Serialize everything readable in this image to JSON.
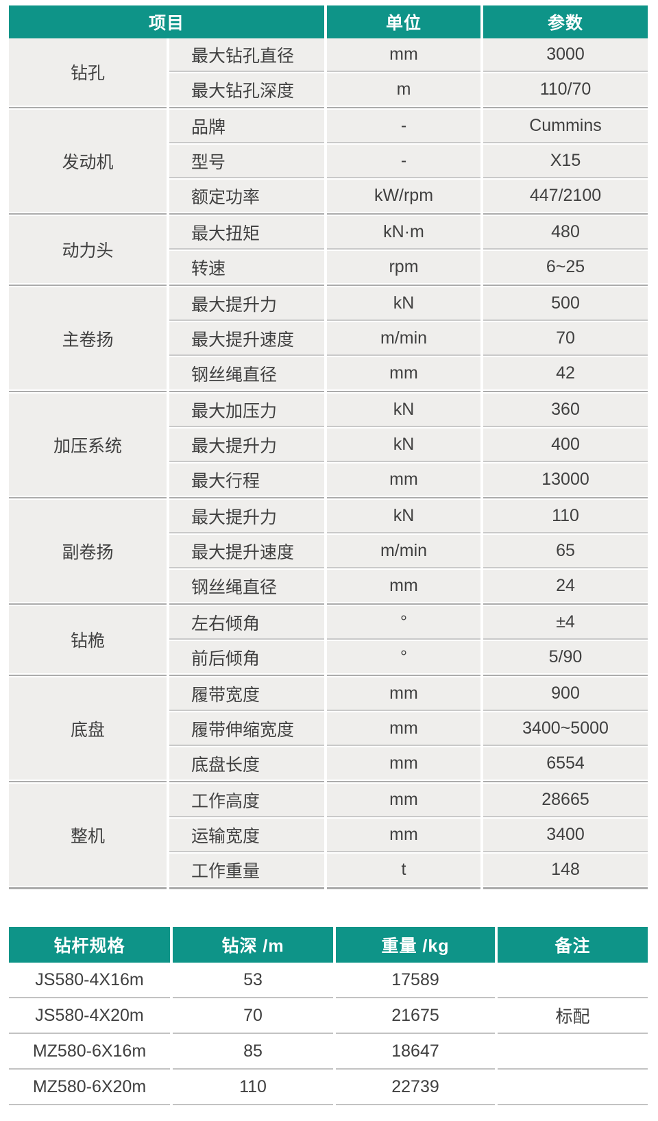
{
  "colors": {
    "accent_teal": "#0E9488",
    "cell_gray": "#EFEEEC",
    "text": "#404040",
    "row_divider": "#C9C9C9",
    "group_divider": "#ABABAB",
    "pipe_row_divider": "#C2C2C2"
  },
  "spec_table": {
    "headers": [
      "项目",
      "单位",
      "参数"
    ],
    "groups": [
      {
        "name": "钻孔",
        "rows": [
          {
            "item": "最大钻孔直径",
            "unit": "mm",
            "value": "3000"
          },
          {
            "item": "最大钻孔深度",
            "unit": "m",
            "value": "110/70"
          }
        ]
      },
      {
        "name": "发动机",
        "rows": [
          {
            "item": "品牌",
            "unit": "-",
            "value": "Cummins"
          },
          {
            "item": "型号",
            "unit": "-",
            "value": "X15"
          },
          {
            "item": "额定功率",
            "unit": "kW/rpm",
            "value": "447/2100"
          }
        ]
      },
      {
        "name": "动力头",
        "rows": [
          {
            "item": "最大扭矩",
            "unit": "kN·m",
            "value": "480"
          },
          {
            "item": "转速",
            "unit": "rpm",
            "value": "6~25"
          }
        ]
      },
      {
        "name": "主卷扬",
        "rows": [
          {
            "item": "最大提升力",
            "unit": "kN",
            "value": "500"
          },
          {
            "item": "最大提升速度",
            "unit": "m/min",
            "value": "70"
          },
          {
            "item": "钢丝绳直径",
            "unit": "mm",
            "value": "42"
          }
        ]
      },
      {
        "name": "加压系统",
        "rows": [
          {
            "item": "最大加压力",
            "unit": "kN",
            "value": "360"
          },
          {
            "item": "最大提升力",
            "unit": "kN",
            "value": "400"
          },
          {
            "item": "最大行程",
            "unit": "mm",
            "value": "13000"
          }
        ]
      },
      {
        "name": "副卷扬",
        "rows": [
          {
            "item": "最大提升力",
            "unit": "kN",
            "value": "110"
          },
          {
            "item": "最大提升速度",
            "unit": "m/min",
            "value": "65"
          },
          {
            "item": "钢丝绳直径",
            "unit": "mm",
            "value": "24"
          }
        ]
      },
      {
        "name": "钻桅",
        "rows": [
          {
            "item": "左右倾角",
            "unit": "°",
            "value": "±4"
          },
          {
            "item": "前后倾角",
            "unit": "°",
            "value": "5/90"
          }
        ]
      },
      {
        "name": "底盘",
        "rows": [
          {
            "item": "履带宽度",
            "unit": "mm",
            "value": "900"
          },
          {
            "item": "履带伸缩宽度",
            "unit": "mm",
            "value": "3400~5000"
          },
          {
            "item": "底盘长度",
            "unit": "mm",
            "value": "6554"
          }
        ]
      },
      {
        "name": "整机",
        "rows": [
          {
            "item": "工作高度",
            "unit": "mm",
            "value": "28665"
          },
          {
            "item": "运输宽度",
            "unit": "mm",
            "value": "3400"
          },
          {
            "item": "工作重量",
            "unit": "t",
            "value": "148"
          }
        ]
      }
    ]
  },
  "pipe_table": {
    "headers": [
      "钻杆规格",
      "钻深 /m",
      "重量 /kg",
      "备注"
    ],
    "rows": [
      [
        "JS580-4X16m",
        "53",
        "17589",
        ""
      ],
      [
        "JS580-4X20m",
        "70",
        "21675",
        "标配"
      ],
      [
        "MZ580-6X16m",
        "85",
        "18647",
        ""
      ],
      [
        "MZ580-6X20m",
        "110",
        "22739",
        ""
      ]
    ]
  }
}
